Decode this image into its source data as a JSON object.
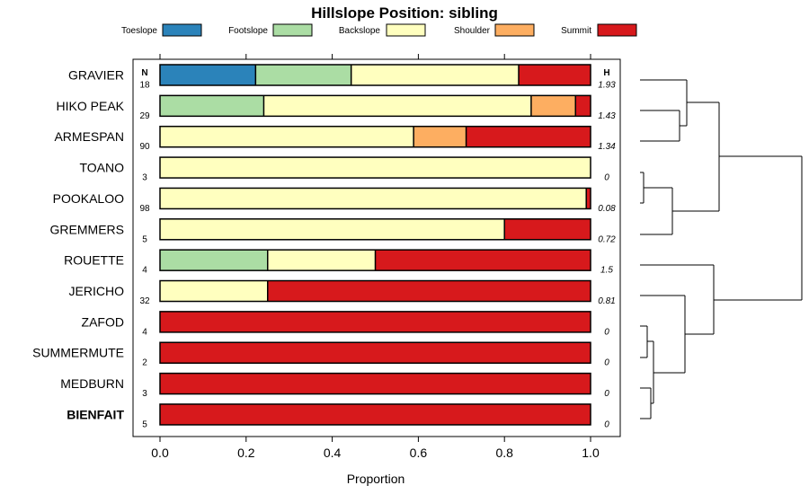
{
  "chart_data": {
    "type": "bar",
    "orientation": "horizontal-stacked",
    "title": "Hillslope Position: sibling",
    "xlabel": "Proportion",
    "ylabel": "",
    "xlim": [
      0,
      1
    ],
    "x_ticks": [
      "0.0",
      "0.2",
      "0.4",
      "0.6",
      "0.8",
      "1.0"
    ],
    "n_header": "N",
    "h_header": "H",
    "legend": [
      {
        "name": "Toeslope",
        "color": "#2b83ba"
      },
      {
        "name": "Footslope",
        "color": "#abdda4"
      },
      {
        "name": "Backslope",
        "color": "#ffffbf"
      },
      {
        "name": "Shoulder",
        "color": "#fdae61"
      },
      {
        "name": "Summit",
        "color": "#d7191c"
      }
    ],
    "rows": [
      {
        "label": "GRAVIER",
        "n": "18",
        "h": "1.93",
        "bold": false,
        "values": [
          0.222,
          0.222,
          0.389,
          0,
          0.167
        ]
      },
      {
        "label": "HIKO PEAK",
        "n": "29",
        "h": "1.43",
        "bold": false,
        "values": [
          0,
          0.241,
          0.621,
          0.103,
          0.035
        ]
      },
      {
        "label": "ARMESPAN",
        "n": "90",
        "h": "1.34",
        "bold": false,
        "values": [
          0,
          0,
          0.589,
          0.122,
          0.289
        ]
      },
      {
        "label": "TOANO",
        "n": "3",
        "h": "0",
        "bold": false,
        "values": [
          0,
          0,
          1.0,
          0,
          0
        ]
      },
      {
        "label": "POOKALOO",
        "n": "98",
        "h": "0.08",
        "bold": false,
        "values": [
          0,
          0,
          0.99,
          0,
          0.01
        ]
      },
      {
        "label": "GREMMERS",
        "n": "5",
        "h": "0.72",
        "bold": false,
        "values": [
          0,
          0,
          0.8,
          0,
          0.2
        ]
      },
      {
        "label": "ROUETTE",
        "n": "4",
        "h": "1.5",
        "bold": false,
        "values": [
          0,
          0.25,
          0.25,
          0,
          0.5
        ]
      },
      {
        "label": "JERICHO",
        "n": "32",
        "h": "0.81",
        "bold": false,
        "values": [
          0,
          0,
          0.25,
          0,
          0.75
        ]
      },
      {
        "label": "ZAFOD",
        "n": "4",
        "h": "0",
        "bold": false,
        "values": [
          0,
          0,
          0,
          0,
          1.0
        ]
      },
      {
        "label": "SUMMERMUTE",
        "n": "2",
        "h": "0",
        "bold": false,
        "values": [
          0,
          0,
          0,
          0,
          1.0
        ]
      },
      {
        "label": "MEDBURN",
        "n": "3",
        "h": "0",
        "bold": false,
        "values": [
          0,
          0,
          0,
          0,
          1.0
        ]
      },
      {
        "label": "BIENFAIT",
        "n": "5",
        "h": "0",
        "bold": true,
        "values": [
          0,
          0,
          0,
          0,
          1.0
        ]
      }
    ]
  }
}
